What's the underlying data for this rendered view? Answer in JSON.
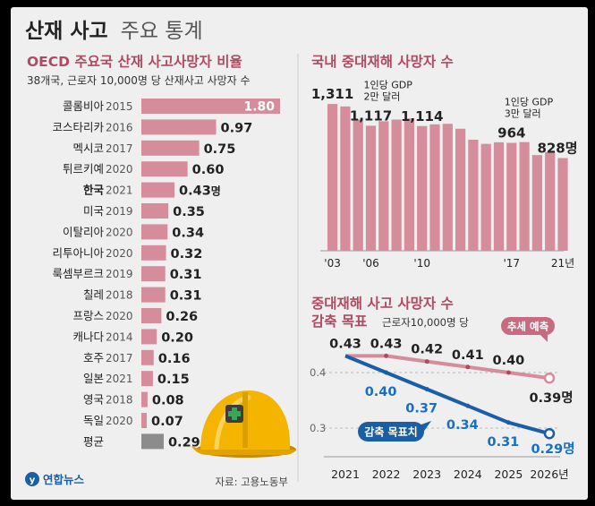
{
  "title_bold": "산재 사고",
  "title_light": "주요 통계",
  "source": "자료: 고용노동부",
  "logo_text": "연합뉴스",
  "colors": {
    "pink": "#d58c9b",
    "maroon": "#b04a62",
    "blue": "#1a5fa6",
    "blue_text": "#1a6fc0",
    "gray": "#8c8c8c",
    "dark": "#222222"
  },
  "chart_data": [
    {
      "type": "bar",
      "orientation": "horizontal",
      "title": "OECD 주요국 산재 사고사망자 비율",
      "subtitle": "38개국, 근로자 10,000명 당 산재사고 사망자 수",
      "categories": [
        {
          "country": "콜롬비아",
          "year": "2015"
        },
        {
          "country": "코스타리카",
          "year": "2016"
        },
        {
          "country": "멕시코",
          "year": "2017"
        },
        {
          "country": "튀르키예",
          "year": "2020"
        },
        {
          "country": "한국",
          "year": "2021"
        },
        {
          "country": "미국",
          "year": "2019"
        },
        {
          "country": "이탈리아",
          "year": "2020"
        },
        {
          "country": "리투아니아",
          "year": "2020"
        },
        {
          "country": "룩셈부르크",
          "year": "2019"
        },
        {
          "country": "칠레",
          "year": "2018"
        },
        {
          "country": "프랑스",
          "year": "2020"
        },
        {
          "country": "캐나다",
          "year": "2014"
        },
        {
          "country": "호주",
          "year": "2017"
        },
        {
          "country": "일본",
          "year": "2021"
        },
        {
          "country": "영국",
          "year": "2018"
        },
        {
          "country": "독일",
          "year": "2020"
        },
        {
          "country": "평균",
          "year": ""
        }
      ],
      "values": [
        1.8,
        0.97,
        0.75,
        0.6,
        0.43,
        0.35,
        0.34,
        0.32,
        0.31,
        0.31,
        0.26,
        0.2,
        0.16,
        0.15,
        0.08,
        0.07,
        0.29
      ],
      "value_labels": [
        "1.80",
        "0.97",
        "0.75",
        "0.60",
        "0.43",
        "0.35",
        "0.34",
        "0.32",
        "0.31",
        "0.31",
        "0.26",
        "0.20",
        "0.16",
        "0.15",
        "0.08",
        "0.07",
        "0.29"
      ],
      "highlight_index": 4,
      "highlight_unit": "명",
      "average_index": 16
    },
    {
      "type": "bar",
      "title": "국내 중대재해 사망자 수",
      "x": [
        2003,
        2004,
        2005,
        2006,
        2007,
        2008,
        2009,
        2010,
        2011,
        2012,
        2013,
        2014,
        2015,
        2016,
        2017,
        2018,
        2019,
        2020,
        2021
      ],
      "values": [
        1311,
        1289,
        1172,
        1117,
        1157,
        1172,
        1182,
        1114,
        1129,
        1134,
        1090,
        992,
        955,
        969,
        964,
        971,
        855,
        882,
        828
      ],
      "xtick_labels": [
        {
          "x": 2003,
          "label": "'03"
        },
        {
          "x": 2006,
          "label": "'06"
        },
        {
          "x": 2010,
          "label": "'10"
        },
        {
          "x": 2017,
          "label": "'17"
        },
        {
          "x": 2021,
          "label": "21년"
        }
      ],
      "value_labels": [
        {
          "x": 2003,
          "label": "1,311"
        },
        {
          "x": 2006,
          "label": "1,117"
        },
        {
          "x": 2010,
          "label": "1,114"
        },
        {
          "x": 2017,
          "label": "964"
        },
        {
          "x": 2021,
          "label": "828명"
        }
      ],
      "annotations": [
        {
          "x": 2006,
          "lines": [
            "1인당 GDP",
            "2만 달러"
          ]
        },
        {
          "x": 2017,
          "lines": [
            "1인당 GDP",
            "3만 달러"
          ]
        }
      ],
      "ylim": [
        0,
        1400
      ]
    },
    {
      "type": "line",
      "title_line1": "중대재해 사고 사망자 수",
      "title_line2": "감축 목표",
      "subtitle": "근로자10,000명 당",
      "x": [
        2021,
        2022,
        2023,
        2024,
        2025,
        2026
      ],
      "xtick_labels": [
        "2021",
        "2022",
        "2023",
        "2024",
        "2025",
        "2026년"
      ],
      "yticks": [
        {
          "value": 0.4,
          "label": "0.4"
        },
        {
          "value": 0.3,
          "label": "0.3"
        }
      ],
      "ylim": [
        0.27,
        0.45
      ],
      "series": [
        {
          "name": "추세 예측",
          "values": [
            0.43,
            0.43,
            0.42,
            0.41,
            0.4,
            0.39
          ],
          "labels": [
            "0.43",
            "0.43",
            "0.42",
            "0.41",
            "0.40",
            "0.39명"
          ]
        },
        {
          "name": "감축 목표치",
          "values": [
            0.43,
            0.4,
            0.37,
            0.34,
            0.31,
            0.29
          ],
          "labels": [
            "",
            "0.40",
            "0.37",
            "0.34",
            "0.31",
            "0.29명"
          ]
        }
      ]
    }
  ]
}
